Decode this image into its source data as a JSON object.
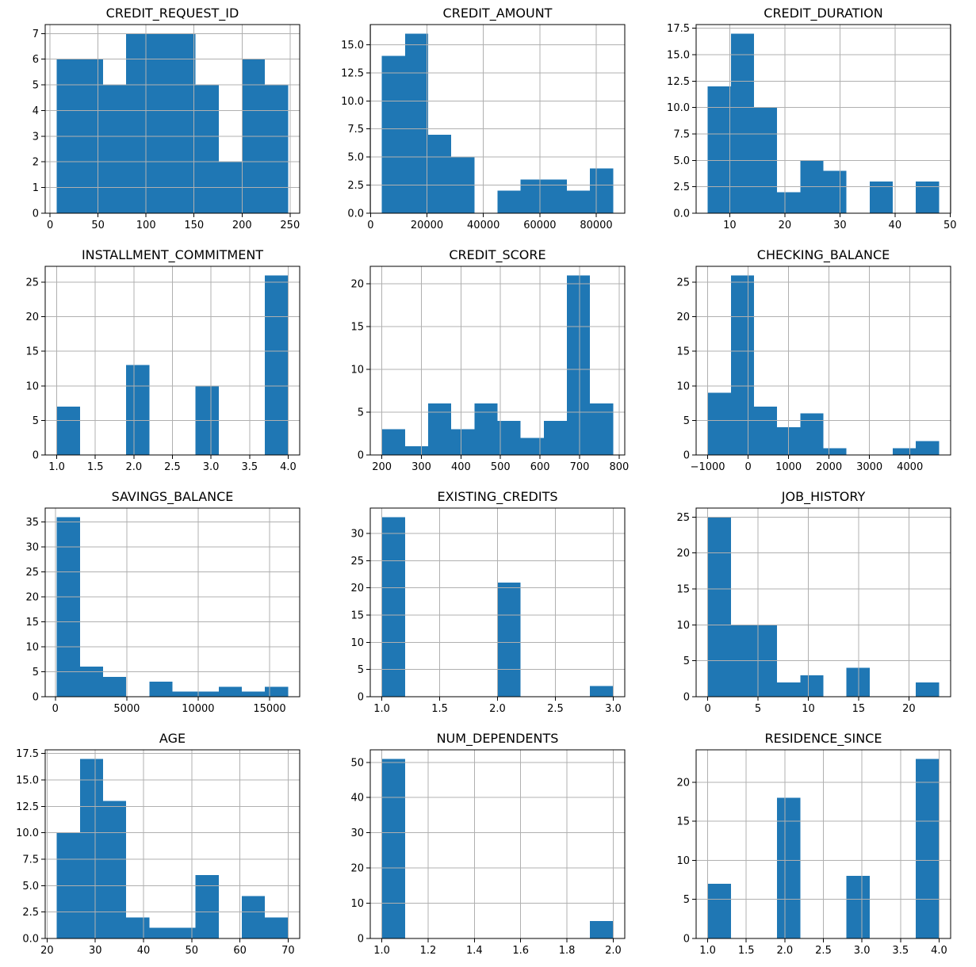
{
  "figure": {
    "rows": 4,
    "cols": 3,
    "background_color": "#ffffff",
    "bar_color": "#1f77b4",
    "grid_color": "#b0b0b0",
    "axis_color": "#000000",
    "text_color": "#000000",
    "grid": "on"
  },
  "chart_data": [
    {
      "type": "bar",
      "subtype": "histogram",
      "title": "CREDIT_REQUEST_ID",
      "xlabel": "",
      "ylabel": "",
      "bin_range": [
        7,
        248
      ],
      "bin_count": 10,
      "values": [
        6,
        6,
        5,
        7,
        7,
        7,
        5,
        2,
        6,
        5
      ],
      "xticks": [
        0,
        50,
        100,
        150,
        200,
        250
      ],
      "xtick_labels": [
        "0",
        "50",
        "100",
        "150",
        "200",
        "250"
      ],
      "yticks": [
        0,
        1,
        2,
        3,
        4,
        5,
        6,
        7
      ],
      "ytick_labels": [
        "0",
        "1",
        "2",
        "3",
        "4",
        "5",
        "6",
        "7"
      ],
      "xlim": [
        -5.05,
        260.05
      ],
      "ylim": [
        0,
        7.35
      ]
    },
    {
      "type": "bar",
      "subtype": "histogram",
      "title": "CREDIT_AMOUNT",
      "xlabel": "",
      "ylabel": "",
      "bin_range": [
        4000,
        86000
      ],
      "bin_count": 10,
      "values": [
        14,
        16,
        7,
        5,
        0,
        2,
        3,
        3,
        2,
        4
      ],
      "xticks": [
        0,
        20000,
        40000,
        60000,
        80000
      ],
      "xtick_labels": [
        "0",
        "20000",
        "40000",
        "60000",
        "80000"
      ],
      "yticks": [
        0,
        2.5,
        5,
        7.5,
        10,
        12.5,
        15
      ],
      "ytick_labels": [
        "0.0",
        "2.5",
        "5.0",
        "7.5",
        "10.0",
        "12.5",
        "15.0"
      ],
      "xlim": [
        -100,
        90100
      ],
      "ylim": [
        0,
        16.8
      ]
    },
    {
      "type": "bar",
      "subtype": "histogram",
      "title": "CREDIT_DURATION",
      "xlabel": "",
      "ylabel": "",
      "bin_range": [
        6,
        48
      ],
      "bin_count": 10,
      "values": [
        12,
        17,
        10,
        2,
        5,
        4,
        0,
        3,
        0,
        3
      ],
      "xticks": [
        10,
        20,
        30,
        40,
        50
      ],
      "xtick_labels": [
        "10",
        "20",
        "30",
        "40",
        "50"
      ],
      "yticks": [
        0,
        2.5,
        5,
        7.5,
        10,
        12.5,
        15,
        17.5
      ],
      "ytick_labels": [
        "0.0",
        "2.5",
        "5.0",
        "7.5",
        "10.0",
        "12.5",
        "15.0",
        "17.5"
      ],
      "xlim": [
        3.9,
        50.1
      ],
      "ylim": [
        0,
        17.85
      ]
    },
    {
      "type": "bar",
      "subtype": "histogram",
      "title": "INSTALLMENT_COMMITMENT",
      "xlabel": "",
      "ylabel": "",
      "bin_range": [
        1,
        4
      ],
      "bin_count": 10,
      "values": [
        7,
        0,
        0,
        13,
        0,
        0,
        10,
        0,
        0,
        26
      ],
      "xticks": [
        1,
        1.5,
        2,
        2.5,
        3,
        3.5,
        4
      ],
      "xtick_labels": [
        "1.0",
        "1.5",
        "2.0",
        "2.5",
        "3.0",
        "3.5",
        "4.0"
      ],
      "yticks": [
        0,
        5,
        10,
        15,
        20,
        25
      ],
      "ytick_labels": [
        "0",
        "5",
        "10",
        "15",
        "20",
        "25"
      ],
      "xlim": [
        0.85,
        4.15
      ],
      "ylim": [
        0,
        27.3
      ]
    },
    {
      "type": "bar",
      "subtype": "histogram",
      "title": "CREDIT_SCORE",
      "xlabel": "",
      "ylabel": "",
      "bin_range": [
        200,
        785
      ],
      "bin_count": 10,
      "values": [
        3,
        1,
        6,
        3,
        6,
        4,
        2,
        4,
        21,
        6
      ],
      "xticks": [
        200,
        300,
        400,
        500,
        600,
        700,
        800
      ],
      "xtick_labels": [
        "200",
        "300",
        "400",
        "500",
        "600",
        "700",
        "800"
      ],
      "yticks": [
        0,
        5,
        10,
        15,
        20
      ],
      "ytick_labels": [
        "0",
        "5",
        "10",
        "15",
        "20"
      ],
      "xlim": [
        170.75,
        814.25
      ],
      "ylim": [
        0,
        22.05
      ]
    },
    {
      "type": "bar",
      "subtype": "histogram",
      "title": "CHECKING_BALANCE",
      "xlabel": "",
      "ylabel": "",
      "bin_range": [
        -1000,
        4720
      ],
      "bin_count": 10,
      "values": [
        9,
        26,
        7,
        4,
        6,
        1,
        0,
        0,
        1,
        2
      ],
      "xticks": [
        -1000,
        0,
        1000,
        2000,
        3000,
        4000
      ],
      "xtick_labels": [
        "−1000",
        "0",
        "1000",
        "2000",
        "3000",
        "4000"
      ],
      "yticks": [
        0,
        5,
        10,
        15,
        20,
        25
      ],
      "ytick_labels": [
        "0",
        "5",
        "10",
        "15",
        "20",
        "25"
      ],
      "xlim": [
        -1286,
        5006
      ],
      "ylim": [
        0,
        27.3
      ]
    },
    {
      "type": "bar",
      "subtype": "histogram",
      "title": "SAVINGS_BALANCE",
      "xlabel": "",
      "ylabel": "",
      "bin_range": [
        100,
        16300
      ],
      "bin_count": 10,
      "values": [
        36,
        6,
        4,
        0,
        3,
        1,
        1,
        2,
        1,
        2
      ],
      "xticks": [
        0,
        5000,
        10000,
        15000
      ],
      "xtick_labels": [
        "0",
        "5000",
        "10000",
        "15000"
      ],
      "yticks": [
        0,
        5,
        10,
        15,
        20,
        25,
        30,
        35
      ],
      "ytick_labels": [
        "0",
        "5",
        "10",
        "15",
        "20",
        "25",
        "30",
        "35"
      ],
      "xlim": [
        -710,
        17110
      ],
      "ylim": [
        0,
        37.8
      ]
    },
    {
      "type": "bar",
      "subtype": "histogram",
      "title": "EXISTING_CREDITS",
      "xlabel": "",
      "ylabel": "",
      "bin_range": [
        1,
        3
      ],
      "bin_count": 10,
      "values": [
        33,
        0,
        0,
        0,
        0,
        21,
        0,
        0,
        0,
        2
      ],
      "xticks": [
        1,
        1.5,
        2,
        2.5,
        3
      ],
      "xtick_labels": [
        "1.0",
        "1.5",
        "2.0",
        "2.5",
        "3.0"
      ],
      "yticks": [
        0,
        5,
        10,
        15,
        20,
        25,
        30
      ],
      "ytick_labels": [
        "0",
        "5",
        "10",
        "15",
        "20",
        "25",
        "30"
      ],
      "xlim": [
        0.9,
        3.1
      ],
      "ylim": [
        0,
        34.65
      ]
    },
    {
      "type": "bar",
      "subtype": "histogram",
      "title": "JOB_HISTORY",
      "xlabel": "",
      "ylabel": "",
      "bin_range": [
        0,
        23
      ],
      "bin_count": 10,
      "values": [
        25,
        10,
        10,
        2,
        3,
        0,
        4,
        0,
        0,
        2
      ],
      "xticks": [
        0,
        5,
        10,
        15,
        20
      ],
      "xtick_labels": [
        "0",
        "5",
        "10",
        "15",
        "20"
      ],
      "yticks": [
        0,
        5,
        10,
        15,
        20,
        25
      ],
      "ytick_labels": [
        "0",
        "5",
        "10",
        "15",
        "20",
        "25"
      ],
      "xlim": [
        -1.15,
        24.15
      ],
      "ylim": [
        0,
        26.25
      ]
    },
    {
      "type": "bar",
      "subtype": "histogram",
      "title": "AGE",
      "xlabel": "",
      "ylabel": "",
      "bin_range": [
        22,
        70
      ],
      "bin_count": 10,
      "values": [
        10,
        17,
        13,
        2,
        1,
        1,
        6,
        0,
        4,
        2
      ],
      "xticks": [
        20,
        30,
        40,
        50,
        60,
        70
      ],
      "xtick_labels": [
        "20",
        "30",
        "40",
        "50",
        "60",
        "70"
      ],
      "yticks": [
        0,
        2.5,
        5,
        7.5,
        10,
        12.5,
        15,
        17.5
      ],
      "ytick_labels": [
        "0.0",
        "2.5",
        "5.0",
        "7.5",
        "10.0",
        "12.5",
        "15.0",
        "17.5"
      ],
      "xlim": [
        19.6,
        72.4
      ],
      "ylim": [
        0,
        17.85
      ]
    },
    {
      "type": "bar",
      "subtype": "histogram",
      "title": "NUM_DEPENDENTS",
      "xlabel": "",
      "ylabel": "",
      "bin_range": [
        1,
        2
      ],
      "bin_count": 10,
      "values": [
        51,
        0,
        0,
        0,
        0,
        0,
        0,
        0,
        0,
        5
      ],
      "xticks": [
        1,
        1.2,
        1.4,
        1.6,
        1.8,
        2
      ],
      "xtick_labels": [
        "1.0",
        "1.2",
        "1.4",
        "1.6",
        "1.8",
        "2.0"
      ],
      "yticks": [
        0,
        10,
        20,
        30,
        40,
        50
      ],
      "ytick_labels": [
        "0",
        "10",
        "20",
        "30",
        "40",
        "50"
      ],
      "xlim": [
        0.95,
        2.05
      ],
      "ylim": [
        0,
        53.55
      ]
    },
    {
      "type": "bar",
      "subtype": "histogram",
      "title": "RESIDENCE_SINCE",
      "xlabel": "",
      "ylabel": "",
      "bin_range": [
        1,
        4
      ],
      "bin_count": 10,
      "values": [
        7,
        0,
        0,
        18,
        0,
        0,
        8,
        0,
        0,
        23
      ],
      "xticks": [
        1,
        1.5,
        2,
        2.5,
        3,
        3.5,
        4
      ],
      "xtick_labels": [
        "1.0",
        "1.5",
        "2.0",
        "2.5",
        "3.0",
        "3.5",
        "4.0"
      ],
      "yticks": [
        0,
        5,
        10,
        15,
        20
      ],
      "ytick_labels": [
        "0",
        "5",
        "10",
        "15",
        "20"
      ],
      "xlim": [
        0.85,
        4.15
      ],
      "ylim": [
        0,
        24.15
      ]
    }
  ]
}
